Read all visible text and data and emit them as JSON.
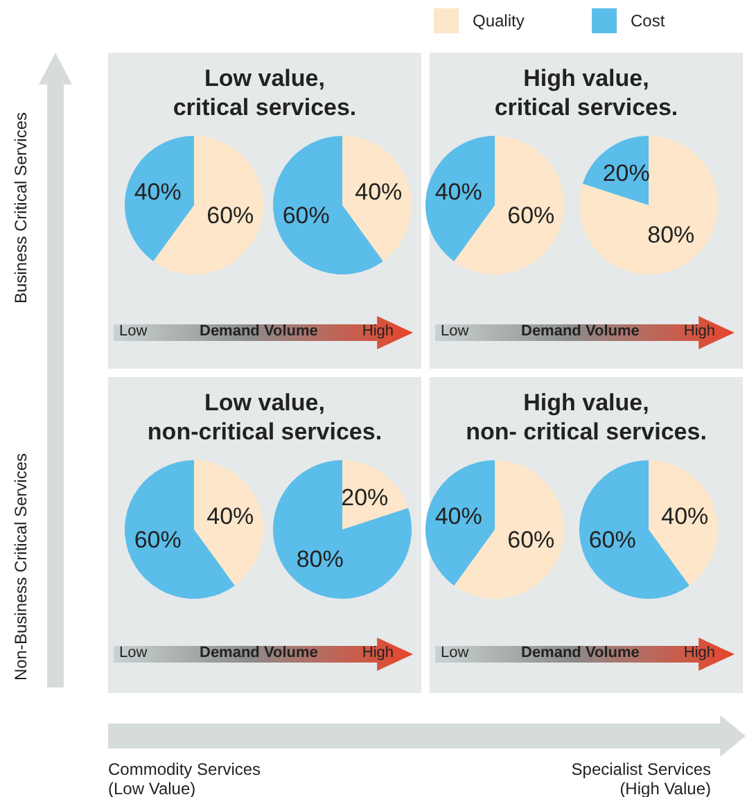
{
  "chart_data": [
    {
      "type": "pie",
      "title": "Low value,\ncritical services.",
      "categories": [
        "Quality",
        "Cost"
      ],
      "values": [
        60,
        40
      ],
      "colors": [
        "#fde6c9",
        "#5bbde9"
      ],
      "value_labels": [
        "60%",
        "40%"
      ],
      "legend": "top right",
      "annotations": [
        "Low",
        "Demand Volume",
        "High",
        "Business Critical Services",
        "Non-Business Critical Services",
        "Commodity Services\n(Low Value)",
        "Specialist Services\n(High Value)"
      ]
    },
    {
      "type": "pie",
      "categories": [
        null,
        null
      ],
      "values": [
        40,
        60
      ],
      "colors": [
        "#fde6c9",
        "#5bbde9"
      ],
      "value_labels": [
        "40%",
        "60%"
      ]
    },
    {
      "type": "pie",
      "title": "High value,\ncritical services.",
      "categories": [
        null,
        null
      ],
      "values": [
        60,
        40
      ],
      "colors": [
        "#fde6c9",
        "#5bbde9"
      ],
      "value_labels": [
        "60%",
        "40%"
      ],
      "annotations": [
        "Low",
        "Demand Volume",
        "High"
      ]
    },
    {
      "type": "pie",
      "categories": [
        null,
        null
      ],
      "values": [
        80,
        20
      ],
      "colors": [
        "#fde6c9",
        "#5bbde9"
      ],
      "value_labels": [
        "80%",
        "20%"
      ]
    },
    {
      "type": "pie",
      "title": "Low value,\nnon-critical services.",
      "categories": [
        null,
        null
      ],
      "values": [
        40,
        60
      ],
      "colors": [
        "#fde6c9",
        "#5bbde9"
      ],
      "value_labels": [
        "40%",
        "60%"
      ],
      "annotations": [
        "Low",
        "Demand Volume",
        "High"
      ]
    },
    {
      "type": "pie",
      "categories": [
        null,
        null
      ],
      "values": [
        20,
        80
      ],
      "colors": [
        "#fde6c9",
        "#5bbde9"
      ],
      "value_labels": [
        "20%",
        "80%"
      ]
    },
    {
      "type": "pie",
      "title": "High value,\nnon- critical services.",
      "categories": [
        null,
        null
      ],
      "values": [
        60,
        40
      ],
      "colors": [
        "#fde6c9",
        "#5bbde9"
      ],
      "value_labels": [
        "60%",
        "40%"
      ],
      "annotations": [
        "Low",
        "Demand Volume",
        "High"
      ]
    },
    {
      "type": "pie",
      "categories": [
        null,
        null
      ],
      "values": [
        40,
        60
      ],
      "colors": [
        "#fde6c9",
        "#5bbde9"
      ],
      "value_labels": [
        "40%",
        "60%"
      ]
    }
  ]
}
